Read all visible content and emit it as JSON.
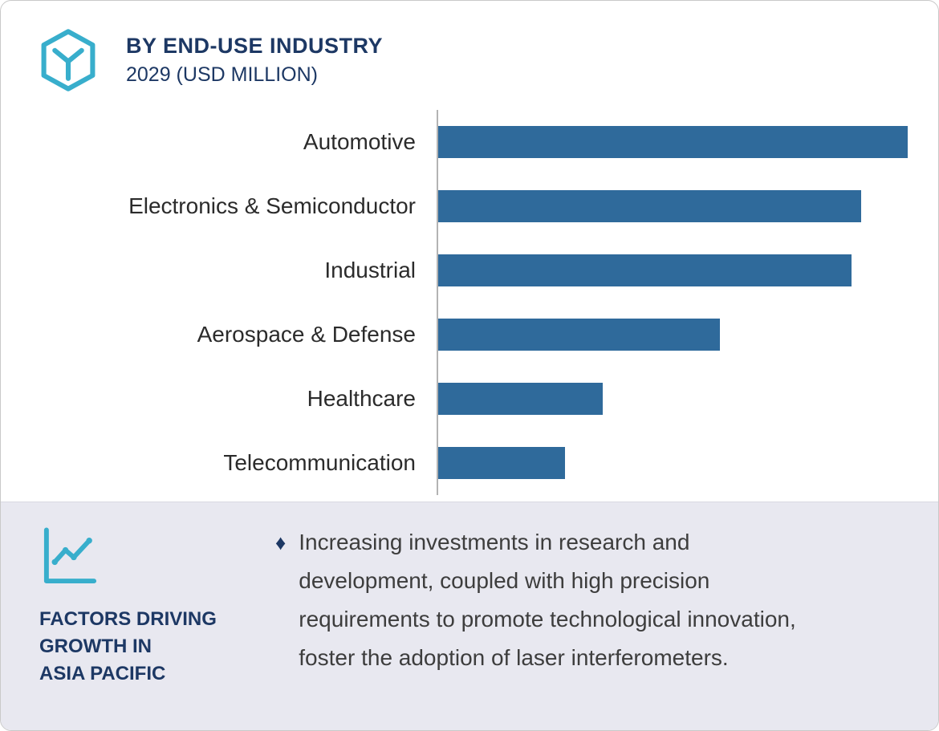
{
  "header": {
    "title": "BY END-USE INDUSTRY",
    "subtitle": "2029 (USD MILLION)",
    "icon": "hexagon-y-logo-icon"
  },
  "chart_data": {
    "type": "bar",
    "orientation": "horizontal",
    "title": "BY END-USE INDUSTRY",
    "subtitle": "2029 (USD MILLION)",
    "categories": [
      "Automotive",
      "Electronics & Semiconductor",
      "Industrial",
      "Aerospace & Defense",
      "Healthcare",
      "Telecommunication"
    ],
    "values": [
      100,
      90,
      88,
      60,
      35,
      27
    ],
    "xlim": [
      0,
      100
    ],
    "grid": false,
    "legend": false,
    "value_labels_shown": false,
    "bar_color": "#2f6a9b",
    "axis_color": "#b3b3b3"
  },
  "footer": {
    "icon": "line-chart-icon",
    "heading": "FACTORS DRIVING\nGROWTH IN\nASIA PACIFIC",
    "bullet": "♦",
    "text": "Increasing investments in research and development, coupled with high precision requirements to promote technological innovation, foster the adoption of laser interferometers."
  },
  "colors": {
    "navy": "#1d3864",
    "teal": "#38aecc",
    "bar_blue": "#2f6a9b",
    "panel_background": "#e8e8f0",
    "card_border": "#c9c9c9",
    "body_text": "#3d3d3d"
  }
}
